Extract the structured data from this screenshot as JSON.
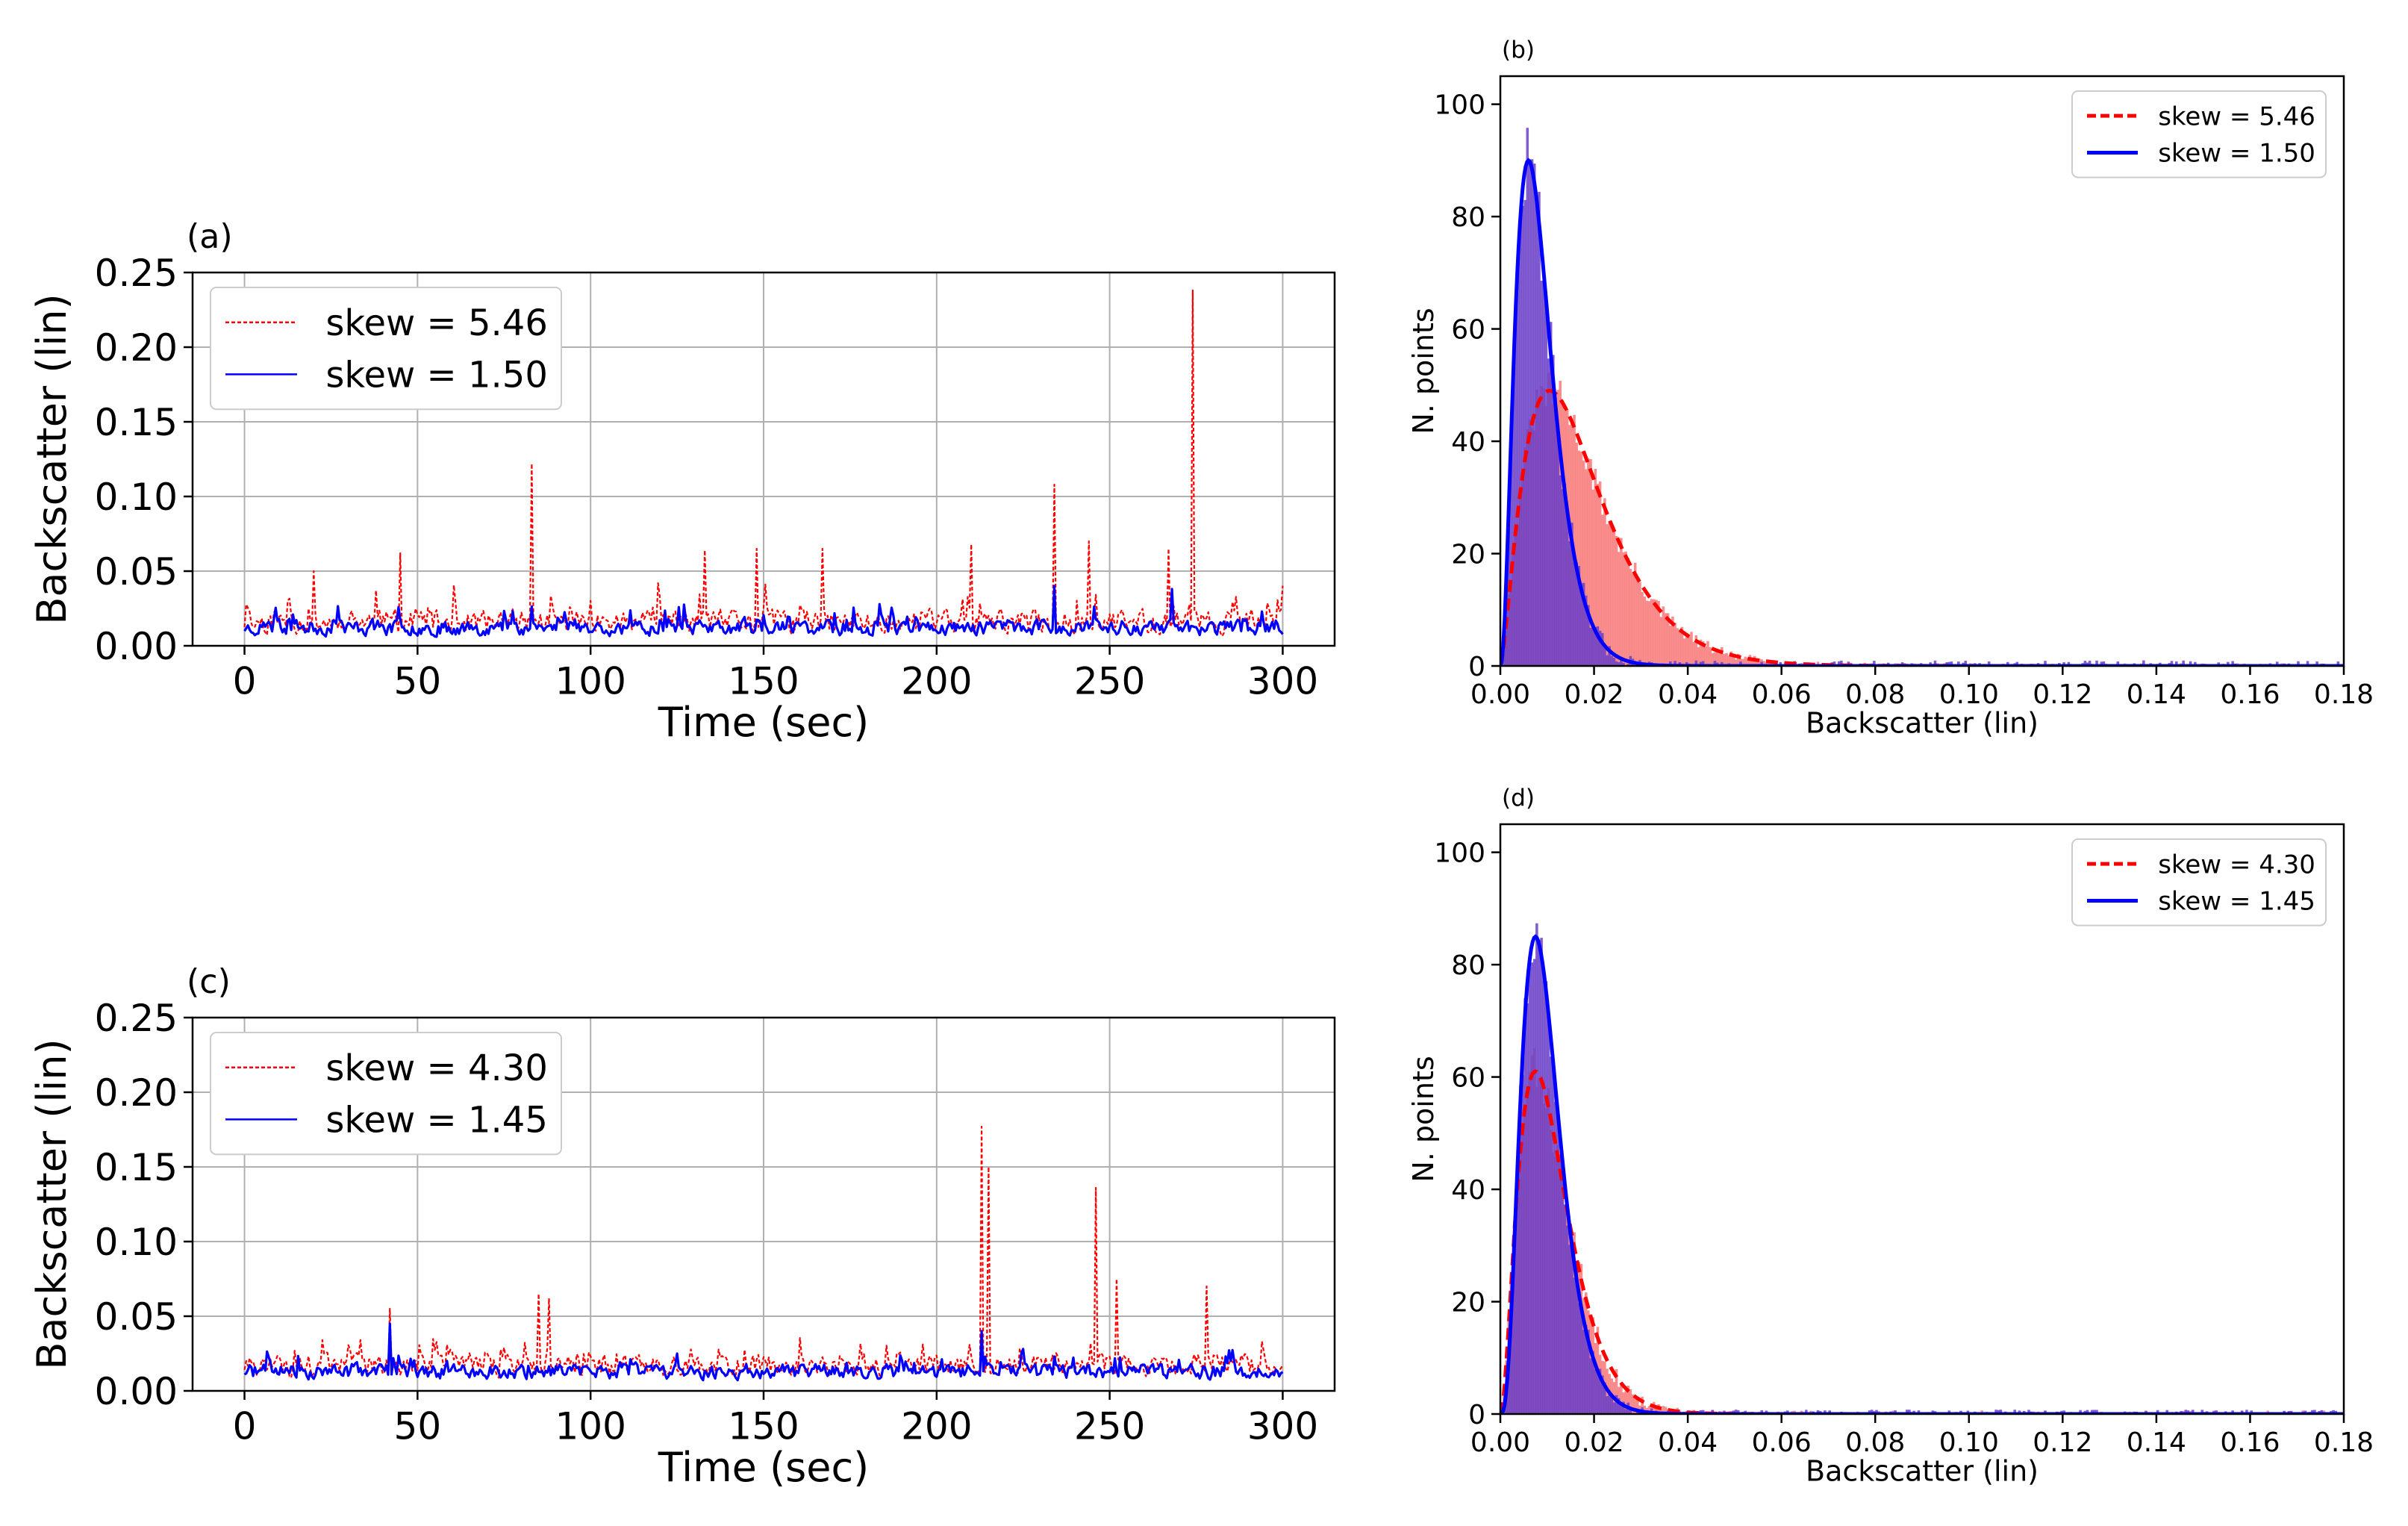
{
  "figure": {
    "background": "#ffffff"
  },
  "colors": {
    "red": "#ff0000",
    "blue": "#0000ff",
    "hist_red": "#f88080",
    "hist_blue": "#6a40c8"
  },
  "chart_data": [
    {
      "panel": "(a)",
      "type": "line",
      "xlabel": "Time (sec)",
      "ylabel": "Backscatter (lin)",
      "xlim": [
        -15,
        315
      ],
      "ylim": [
        0,
        0.25
      ],
      "xticks": [
        0,
        50,
        100,
        150,
        200,
        250,
        300
      ],
      "xtick_labels": [
        "0",
        "50",
        "100",
        "150",
        "200",
        "250",
        "300"
      ],
      "yticks": [
        0,
        0.05,
        0.1,
        0.15,
        0.2,
        0.25
      ],
      "ytick_labels": [
        "0.00",
        "0.05",
        "0.10",
        "0.15",
        "0.20",
        "0.25"
      ],
      "grid": true,
      "legend_position": "top-left",
      "series": [
        {
          "name": "skew = 5.46",
          "style": "dashed",
          "color": "#ff0000",
          "baseline": 0.016,
          "noise": 0.022,
          "seed": 11,
          "spikes": [
            [
              83,
              0.122
            ],
            [
              45,
              0.062
            ],
            [
              20,
              0.05
            ],
            [
              133,
              0.064
            ],
            [
              148,
              0.065
            ],
            [
              167,
              0.065
            ],
            [
              210,
              0.068
            ],
            [
              234,
              0.108
            ],
            [
              244,
              0.07
            ],
            [
              267,
              0.065
            ],
            [
              274,
              0.238
            ]
          ]
        },
        {
          "name": "skew = 1.50",
          "style": "solid",
          "color": "#0000ff",
          "baseline": 0.012,
          "noise": 0.014,
          "seed": 23,
          "spikes": [
            [
              234,
              0.04
            ],
            [
              268,
              0.038
            ]
          ]
        }
      ]
    },
    {
      "panel": "(b)",
      "type": "histogram",
      "xlabel": "Backscatter (lin)",
      "ylabel": "N. points",
      "xlim": [
        0,
        0.18
      ],
      "ylim": [
        0,
        105
      ],
      "xticks": [
        0,
        0.02,
        0.04,
        0.06,
        0.08,
        0.1,
        0.12,
        0.14,
        0.16,
        0.18
      ],
      "xtick_labels": [
        "0.00",
        "0.02",
        "0.04",
        "0.06",
        "0.08",
        "0.10",
        "0.12",
        "0.14",
        "0.16",
        "0.18"
      ],
      "yticks": [
        0,
        20,
        40,
        60,
        80,
        100
      ],
      "ytick_labels": [
        "0",
        "20",
        "40",
        "60",
        "80",
        "100"
      ],
      "grid": false,
      "legend_position": "top-right",
      "series": [
        {
          "name": "skew = 5.46",
          "style": "dashed",
          "color": "#ff0000",
          "hist_color": "#f88080",
          "peak_x": 0.0105,
          "peak_y": 49,
          "shape": 2.5,
          "noise": 7,
          "seed": 31
        },
        {
          "name": "skew = 1.50",
          "style": "solid",
          "color": "#0000ff",
          "hist_color": "#6a40c8",
          "peak_x": 0.006,
          "peak_y": 90,
          "shape": 3.3,
          "noise": 14,
          "seed": 47
        }
      ]
    },
    {
      "panel": "(c)",
      "type": "line",
      "xlabel": "Time (sec)",
      "ylabel": "Backscatter (lin)",
      "xlim": [
        -15,
        315
      ],
      "ylim": [
        0,
        0.25
      ],
      "xticks": [
        0,
        50,
        100,
        150,
        200,
        250,
        300
      ],
      "xtick_labels": [
        "0",
        "50",
        "100",
        "150",
        "200",
        "250",
        "300"
      ],
      "yticks": [
        0,
        0.05,
        0.1,
        0.15,
        0.2,
        0.25
      ],
      "ytick_labels": [
        "0.00",
        "0.05",
        "0.10",
        "0.15",
        "0.20",
        "0.25"
      ],
      "grid": true,
      "legend_position": "top-left",
      "series": [
        {
          "name": "skew = 4.30",
          "style": "dashed",
          "color": "#ff0000",
          "baseline": 0.017,
          "noise": 0.02,
          "seed": 57,
          "spikes": [
            [
              42,
              0.055
            ],
            [
              85,
              0.065
            ],
            [
              88,
              0.062
            ],
            [
              213,
              0.177
            ],
            [
              215,
              0.15
            ],
            [
              246,
              0.136
            ],
            [
              252,
              0.075
            ],
            [
              278,
              0.07
            ]
          ]
        },
        {
          "name": "skew = 1.45",
          "style": "solid",
          "color": "#0000ff",
          "baseline": 0.013,
          "noise": 0.014,
          "seed": 71,
          "spikes": [
            [
              42,
              0.045
            ],
            [
              213,
              0.04
            ]
          ]
        }
      ]
    },
    {
      "panel": "(d)",
      "type": "histogram",
      "xlabel": "Backscatter (lin)",
      "ylabel": "N. points",
      "xlim": [
        0,
        0.18
      ],
      "ylim": [
        0,
        105
      ],
      "xticks": [
        0,
        0.02,
        0.04,
        0.06,
        0.08,
        0.1,
        0.12,
        0.14,
        0.16,
        0.18
      ],
      "xtick_labels": [
        "0.00",
        "0.02",
        "0.04",
        "0.06",
        "0.08",
        "0.10",
        "0.12",
        "0.14",
        "0.16",
        "0.18"
      ],
      "yticks": [
        0,
        20,
        40,
        60,
        80,
        100
      ],
      "ytick_labels": [
        "0",
        "20",
        "40",
        "60",
        "80",
        "100"
      ],
      "grid": false,
      "legend_position": "top-right",
      "series": [
        {
          "name": "skew = 4.30",
          "style": "dashed",
          "color": "#ff0000",
          "hist_color": "#f88080",
          "peak_x": 0.0075,
          "peak_y": 61,
          "shape": 3.0,
          "noise": 9,
          "seed": 83
        },
        {
          "name": "skew = 1.45",
          "style": "solid",
          "color": "#0000ff",
          "hist_color": "#6a40c8",
          "peak_x": 0.0075,
          "peak_y": 85,
          "shape": 4.2,
          "noise": 11,
          "seed": 97
        }
      ]
    }
  ]
}
